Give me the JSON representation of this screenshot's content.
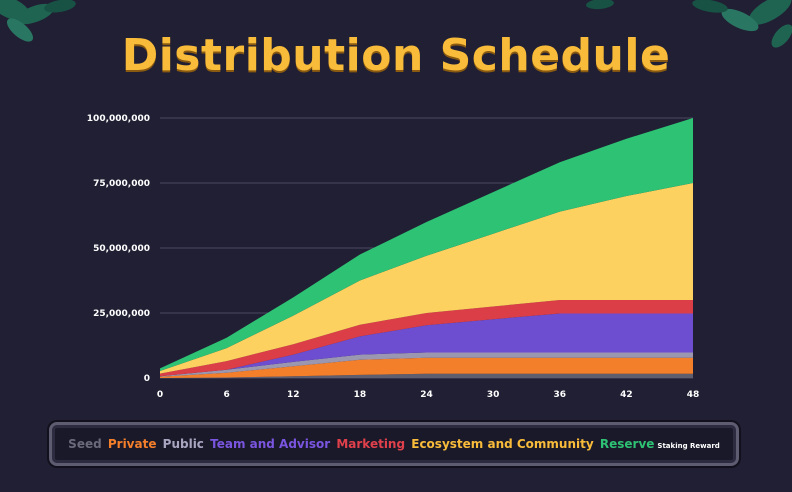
{
  "title": "Distribution Schedule",
  "chart_data": {
    "type": "area",
    "stacked": true,
    "x": [
      0,
      6,
      12,
      18,
      24,
      30,
      36,
      42,
      48
    ],
    "xlim": [
      0,
      48
    ],
    "ylim": [
      0,
      100000000
    ],
    "x_ticks": [
      "0",
      "6",
      "12",
      "18",
      "24",
      "30",
      "36",
      "42",
      "48"
    ],
    "y_ticks": [
      "0",
      "25,000,000",
      "50,000,000",
      "75,000,000",
      "100,000,000"
    ],
    "grid": "horizontal",
    "legend_position": "bottom",
    "series": [
      {
        "name": "Seed",
        "color": "#5f5e6e",
        "values": [
          0,
          200000,
          700000,
          1200000,
          1600000,
          1600000,
          1600000,
          1600000,
          1600000
        ]
      },
      {
        "name": "Private",
        "color": "#f47f2b",
        "values": [
          500000,
          1800000,
          3800000,
          5800000,
          6200000,
          6200000,
          6200000,
          6200000,
          6200000
        ]
      },
      {
        "name": "Public",
        "color": "#9b97b1",
        "values": [
          200000,
          1200000,
          1700000,
          2000000,
          2000000,
          2000000,
          2000000,
          2000000,
          2000000
        ]
      },
      {
        "name": "Team and Advisor",
        "color": "#6d4ed0",
        "values": [
          0,
          0,
          2800000,
          7000000,
          10500000,
          12800000,
          15000000,
          15000000,
          15000000
        ]
      },
      {
        "name": "Marketing",
        "color": "#dc3e48",
        "values": [
          1000000,
          3300000,
          4000000,
          4500000,
          4700000,
          4900000,
          5200000,
          5200000,
          5200000
        ]
      },
      {
        "name": "Ecosystem and Community",
        "color": "#fcd160",
        "values": [
          1000000,
          5000000,
          11000000,
          17000000,
          22000000,
          28000000,
          34000000,
          40000000,
          45000000
        ]
      },
      {
        "name": "Reserve",
        "color": "#2ec274",
        "values": [
          1000000,
          4000000,
          7000000,
          10000000,
          13000000,
          16000000,
          19000000,
          22000000,
          25000000
        ]
      }
    ]
  },
  "legend": {
    "items": [
      {
        "label": "Seed",
        "color": "#6a6a7c"
      },
      {
        "label": "Private",
        "color": "#f47f2b"
      },
      {
        "label": "Public",
        "color": "#a9a5c1"
      },
      {
        "label": "Team and Advisor",
        "color": "#7a55e0"
      },
      {
        "label": "Marketing",
        "color": "#e0404b"
      },
      {
        "label": "Ecosystem and Community",
        "color": "#f8bb3a"
      },
      {
        "label": "Reserve",
        "color": "#2ec274",
        "note": "Staking Reward"
      }
    ]
  }
}
